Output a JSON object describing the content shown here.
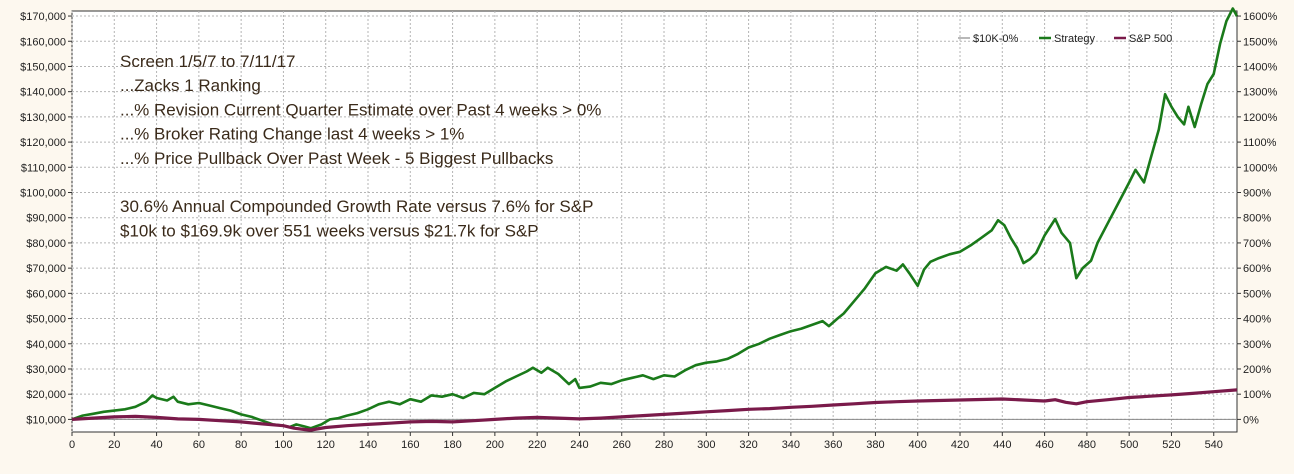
{
  "chart_data": {
    "type": "line",
    "annotations": [
      "Screen 1/5/7 to 7/11/17",
      "...Zacks 1 Ranking",
      "...% Revision Current Quarter Estimate over Past 4 weeks > 0%",
      "...% Broker Rating Change last 4 weeks > 1%",
      "...% Price Pullback Over Past Week - 5 Biggest Pullbacks",
      "",
      "30.6% Annual Compounded Growth Rate versus 7.6% for S&P",
      "$10k to $169.9k over 551 weeks versus $21.7k for S&P"
    ],
    "xlim": [
      0,
      551
    ],
    "ylim": [
      5000,
      172000
    ],
    "y2lim": [
      -50,
      1620
    ],
    "grid": true,
    "legend_position": "top-right",
    "x_ticks": [
      0,
      20,
      40,
      60,
      80,
      100,
      120,
      140,
      160,
      180,
      200,
      220,
      240,
      260,
      280,
      300,
      320,
      340,
      360,
      380,
      400,
      420,
      440,
      460,
      480,
      500,
      520,
      540
    ],
    "y_ticks": [
      {
        "value": 10000,
        "label": "$10,000"
      },
      {
        "value": 20000,
        "label": "$20,000"
      },
      {
        "value": 30000,
        "label": "$30,000"
      },
      {
        "value": 40000,
        "label": "$40,000"
      },
      {
        "value": 50000,
        "label": "$50,000"
      },
      {
        "value": 60000,
        "label": "$60,000"
      },
      {
        "value": 70000,
        "label": "$70,000"
      },
      {
        "value": 80000,
        "label": "$80,000"
      },
      {
        "value": 90000,
        "label": "$90,000"
      },
      {
        "value": 100000,
        "label": "$100,000"
      },
      {
        "value": 110000,
        "label": "$110,000"
      },
      {
        "value": 120000,
        "label": "$120,000"
      },
      {
        "value": 130000,
        "label": "$130,000"
      },
      {
        "value": 140000,
        "label": "$140,000"
      },
      {
        "value": 150000,
        "label": "$150,000"
      },
      {
        "value": 160000,
        "label": "$160,000"
      },
      {
        "value": 170000,
        "label": "$170,000"
      }
    ],
    "y2_ticks": [
      {
        "value": 0,
        "label": "0%"
      },
      {
        "value": 100,
        "label": "100%"
      },
      {
        "value": 200,
        "label": "200%"
      },
      {
        "value": 300,
        "label": "300%"
      },
      {
        "value": 400,
        "label": "400%"
      },
      {
        "value": 500,
        "label": "500%"
      },
      {
        "value": 600,
        "label": "600%"
      },
      {
        "value": 700,
        "label": "700%"
      },
      {
        "value": 800,
        "label": "800%"
      },
      {
        "value": 900,
        "label": "900%"
      },
      {
        "value": 1000,
        "label": "1000%"
      },
      {
        "value": 1100,
        "label": "1100%"
      },
      {
        "value": 1200,
        "label": "1200%"
      },
      {
        "value": 1300,
        "label": "1300%"
      },
      {
        "value": 1400,
        "label": "1400%"
      },
      {
        "value": 1500,
        "label": "1500%"
      },
      {
        "value": 1600,
        "label": "1600%"
      }
    ],
    "series": [
      {
        "name": "$10K-0%",
        "color": "#888888",
        "points": [
          [
            0,
            10000
          ],
          [
            551,
            10000
          ]
        ]
      },
      {
        "name": "Strategy",
        "color": "#1a7a1a",
        "points": [
          [
            0,
            10000
          ],
          [
            5,
            11500
          ],
          [
            10,
            12200
          ],
          [
            15,
            13000
          ],
          [
            20,
            13500
          ],
          [
            25,
            14000
          ],
          [
            30,
            15000
          ],
          [
            35,
            17000
          ],
          [
            38,
            19500
          ],
          [
            40,
            18500
          ],
          [
            45,
            17500
          ],
          [
            48,
            19000
          ],
          [
            50,
            17000
          ],
          [
            55,
            16000
          ],
          [
            60,
            16500
          ],
          [
            65,
            15500
          ],
          [
            70,
            14500
          ],
          [
            75,
            13500
          ],
          [
            80,
            12000
          ],
          [
            85,
            11000
          ],
          [
            90,
            9500
          ],
          [
            95,
            8000
          ],
          [
            100,
            7500
          ],
          [
            103,
            7000
          ],
          [
            106,
            8000
          ],
          [
            110,
            7200
          ],
          [
            113,
            6500
          ],
          [
            118,
            8000
          ],
          [
            122,
            10000
          ],
          [
            126,
            10500
          ],
          [
            130,
            11500
          ],
          [
            135,
            12500
          ],
          [
            140,
            14000
          ],
          [
            145,
            16000
          ],
          [
            150,
            17000
          ],
          [
            155,
            16000
          ],
          [
            160,
            18000
          ],
          [
            165,
            17000
          ],
          [
            170,
            19500
          ],
          [
            175,
            19000
          ],
          [
            180,
            20000
          ],
          [
            185,
            18500
          ],
          [
            190,
            20500
          ],
          [
            195,
            20000
          ],
          [
            200,
            22500
          ],
          [
            205,
            25000
          ],
          [
            210,
            27000
          ],
          [
            215,
            29000
          ],
          [
            218,
            30500
          ],
          [
            222,
            28500
          ],
          [
            225,
            30500
          ],
          [
            230,
            28000
          ],
          [
            235,
            24000
          ],
          [
            238,
            26000
          ],
          [
            240,
            22500
          ],
          [
            245,
            23000
          ],
          [
            250,
            24500
          ],
          [
            255,
            24000
          ],
          [
            260,
            25500
          ],
          [
            265,
            26500
          ],
          [
            270,
            27500
          ],
          [
            275,
            26000
          ],
          [
            280,
            27500
          ],
          [
            285,
            27000
          ],
          [
            290,
            29500
          ],
          [
            295,
            31500
          ],
          [
            300,
            32500
          ],
          [
            305,
            33000
          ],
          [
            310,
            34000
          ],
          [
            315,
            36000
          ],
          [
            320,
            38500
          ],
          [
            325,
            40000
          ],
          [
            330,
            42000
          ],
          [
            335,
            43500
          ],
          [
            340,
            45000
          ],
          [
            345,
            46000
          ],
          [
            350,
            47500
          ],
          [
            355,
            49000
          ],
          [
            358,
            47000
          ],
          [
            362,
            50000
          ],
          [
            365,
            52000
          ],
          [
            370,
            57000
          ],
          [
            375,
            62000
          ],
          [
            380,
            68000
          ],
          [
            385,
            70500
          ],
          [
            390,
            69000
          ],
          [
            393,
            71500
          ],
          [
            396,
            68000
          ],
          [
            400,
            63000
          ],
          [
            403,
            69500
          ],
          [
            406,
            72500
          ],
          [
            410,
            74000
          ],
          [
            415,
            75500
          ],
          [
            420,
            76500
          ],
          [
            425,
            79000
          ],
          [
            430,
            82000
          ],
          [
            435,
            85000
          ],
          [
            438,
            89000
          ],
          [
            441,
            87000
          ],
          [
            444,
            82000
          ],
          [
            447,
            78000
          ],
          [
            450,
            72000
          ],
          [
            453,
            73500
          ],
          [
            456,
            76000
          ],
          [
            460,
            83000
          ],
          [
            465,
            89500
          ],
          [
            468,
            84000
          ],
          [
            472,
            80000
          ],
          [
            475,
            66000
          ],
          [
            478,
            70000
          ],
          [
            482,
            73000
          ],
          [
            485,
            80000
          ],
          [
            490,
            88000
          ],
          [
            495,
            96000
          ],
          [
            500,
            104000
          ],
          [
            503,
            109000
          ],
          [
            507,
            104000
          ],
          [
            510,
            113000
          ],
          [
            514,
            125000
          ],
          [
            517,
            139000
          ],
          [
            520,
            134000
          ],
          [
            523,
            130000
          ],
          [
            526,
            127000
          ],
          [
            528,
            134000
          ],
          [
            531,
            126000
          ],
          [
            534,
            135000
          ],
          [
            537,
            143000
          ],
          [
            540,
            147000
          ],
          [
            543,
            159000
          ],
          [
            546,
            168000
          ],
          [
            549,
            173000
          ],
          [
            551,
            169900
          ]
        ]
      },
      {
        "name": "S&P 500",
        "color": "#7a1a4a",
        "points": [
          [
            0,
            10000
          ],
          [
            10,
            10500
          ],
          [
            20,
            11000
          ],
          [
            30,
            11200
          ],
          [
            40,
            10800
          ],
          [
            50,
            10200
          ],
          [
            60,
            10000
          ],
          [
            70,
            9500
          ],
          [
            80,
            9000
          ],
          [
            90,
            8200
          ],
          [
            100,
            7500
          ],
          [
            105,
            6500
          ],
          [
            110,
            6000
          ],
          [
            113,
            5800
          ],
          [
            120,
            6800
          ],
          [
            130,
            7500
          ],
          [
            140,
            8000
          ],
          [
            150,
            8500
          ],
          [
            160,
            9000
          ],
          [
            170,
            9200
          ],
          [
            180,
            9000
          ],
          [
            190,
            9500
          ],
          [
            200,
            10000
          ],
          [
            210,
            10500
          ],
          [
            220,
            10800
          ],
          [
            230,
            10500
          ],
          [
            240,
            10200
          ],
          [
            250,
            10500
          ],
          [
            260,
            11000
          ],
          [
            270,
            11500
          ],
          [
            280,
            12000
          ],
          [
            290,
            12500
          ],
          [
            300,
            13000
          ],
          [
            310,
            13500
          ],
          [
            320,
            14000
          ],
          [
            330,
            14300
          ],
          [
            340,
            14800
          ],
          [
            350,
            15200
          ],
          [
            360,
            15700
          ],
          [
            370,
            16200
          ],
          [
            380,
            16700
          ],
          [
            390,
            17000
          ],
          [
            400,
            17300
          ],
          [
            410,
            17500
          ],
          [
            420,
            17700
          ],
          [
            430,
            17900
          ],
          [
            440,
            18100
          ],
          [
            450,
            17700
          ],
          [
            460,
            17300
          ],
          [
            465,
            17800
          ],
          [
            470,
            16800
          ],
          [
            475,
            16200
          ],
          [
            480,
            17000
          ],
          [
            490,
            17800
          ],
          [
            500,
            18700
          ],
          [
            510,
            19200
          ],
          [
            520,
            19700
          ],
          [
            530,
            20300
          ],
          [
            540,
            21000
          ],
          [
            551,
            21700
          ]
        ]
      }
    ]
  }
}
